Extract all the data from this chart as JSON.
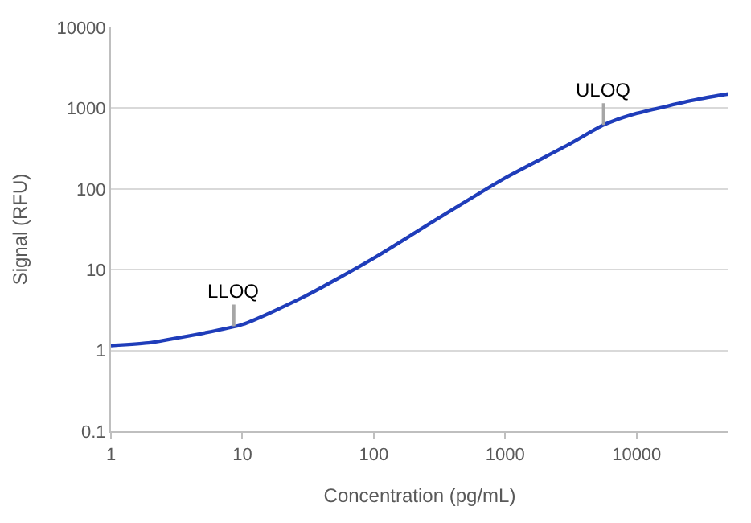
{
  "chart_data": {
    "type": "line",
    "xlabel": "Concentration (pg/mL)",
    "ylabel": "Signal (RFU)",
    "x": [
      1,
      2,
      3,
      10,
      30,
      100,
      300,
      1000,
      3000,
      5600,
      10000,
      30000,
      50000
    ],
    "series": [
      {
        "color": "#1f3dba",
        "values": [
          1.15,
          1.25,
          1.4,
          2.1,
          4.7,
          13.9,
          42,
          137,
          350,
          620,
          860,
          1300,
          1500
        ]
      }
    ],
    "xlim": [
      1,
      50000
    ],
    "ylim": [
      0.1,
      10000
    ],
    "xticks": [
      1,
      10,
      100,
      1000,
      10000
    ],
    "yticks": [
      0.1,
      1,
      10,
      100,
      1000,
      10000
    ],
    "log": "xy",
    "grid": "y",
    "legend": false,
    "marker": "none",
    "line_style": "solid",
    "annotations": [
      {
        "text": "LLOQ",
        "x": 8.6,
        "y": 2
      },
      {
        "text": "ULOQ",
        "x": 5600,
        "y": 620
      }
    ]
  }
}
